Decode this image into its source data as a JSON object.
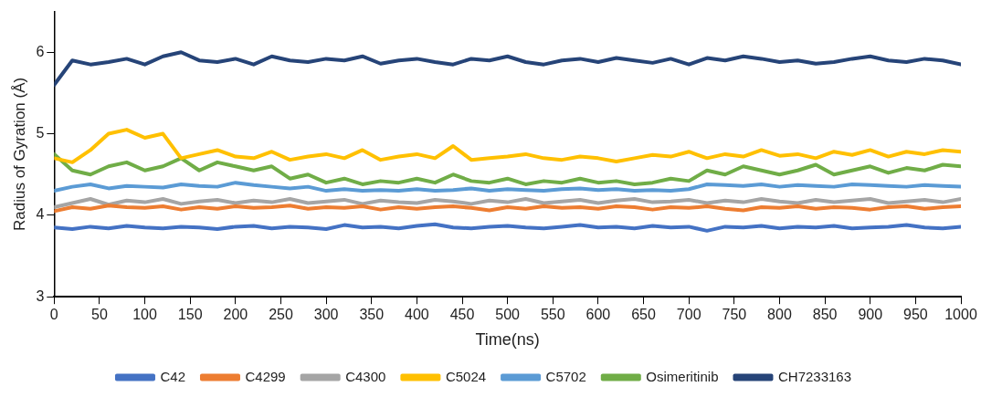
{
  "chart_data": {
    "type": "line",
    "xlabel": "Time(ns)",
    "ylabel": "Radius of Gyration (Å)",
    "x": [
      0,
      20,
      40,
      60,
      80,
      100,
      120,
      140,
      160,
      180,
      200,
      220,
      240,
      260,
      280,
      300,
      320,
      340,
      360,
      380,
      400,
      420,
      440,
      460,
      480,
      500,
      520,
      540,
      560,
      580,
      600,
      620,
      640,
      660,
      680,
      700,
      720,
      740,
      760,
      780,
      800,
      820,
      840,
      860,
      880,
      900,
      920,
      940,
      960,
      980,
      1000
    ],
    "series": [
      {
        "name": "C42",
        "color": "#4472c4",
        "values": [
          3.85,
          3.83,
          3.86,
          3.84,
          3.87,
          3.85,
          3.84,
          3.86,
          3.85,
          3.83,
          3.86,
          3.87,
          3.84,
          3.86,
          3.85,
          3.83,
          3.88,
          3.85,
          3.86,
          3.84,
          3.87,
          3.89,
          3.85,
          3.84,
          3.86,
          3.87,
          3.85,
          3.84,
          3.86,
          3.88,
          3.85,
          3.86,
          3.84,
          3.87,
          3.85,
          3.86,
          3.81,
          3.86,
          3.85,
          3.87,
          3.84,
          3.86,
          3.85,
          3.87,
          3.84,
          3.85,
          3.86,
          3.88,
          3.85,
          3.84,
          3.86
        ]
      },
      {
        "name": "C4299",
        "color": "#ed7d31",
        "values": [
          4.05,
          4.1,
          4.08,
          4.12,
          4.1,
          4.09,
          4.11,
          4.07,
          4.1,
          4.08,
          4.11,
          4.09,
          4.1,
          4.12,
          4.08,
          4.1,
          4.09,
          4.11,
          4.07,
          4.1,
          4.08,
          4.1,
          4.11,
          4.09,
          4.06,
          4.1,
          4.08,
          4.11,
          4.09,
          4.1,
          4.08,
          4.11,
          4.1,
          4.07,
          4.1,
          4.09,
          4.11,
          4.08,
          4.06,
          4.1,
          4.09,
          4.11,
          4.08,
          4.1,
          4.09,
          4.07,
          4.1,
          4.11,
          4.08,
          4.1,
          4.11
        ]
      },
      {
        "name": "C4300",
        "color": "#a5a5a5",
        "values": [
          4.1,
          4.15,
          4.2,
          4.13,
          4.18,
          4.16,
          4.2,
          4.14,
          4.17,
          4.19,
          4.15,
          4.18,
          4.16,
          4.2,
          4.15,
          4.17,
          4.19,
          4.14,
          4.18,
          4.16,
          4.15,
          4.19,
          4.17,
          4.14,
          4.18,
          4.16,
          4.2,
          4.15,
          4.17,
          4.19,
          4.15,
          4.18,
          4.2,
          4.16,
          4.17,
          4.19,
          4.15,
          4.18,
          4.16,
          4.2,
          4.17,
          4.15,
          4.19,
          4.16,
          4.18,
          4.2,
          4.15,
          4.17,
          4.19,
          4.16,
          4.2
        ]
      },
      {
        "name": "C5024",
        "color": "#ffc000",
        "values": [
          4.7,
          4.65,
          4.8,
          5.0,
          5.05,
          4.95,
          5.0,
          4.7,
          4.75,
          4.8,
          4.72,
          4.7,
          4.78,
          4.68,
          4.72,
          4.75,
          4.7,
          4.8,
          4.68,
          4.72,
          4.75,
          4.7,
          4.85,
          4.68,
          4.7,
          4.72,
          4.75,
          4.7,
          4.68,
          4.72,
          4.7,
          4.66,
          4.7,
          4.74,
          4.72,
          4.78,
          4.7,
          4.75,
          4.72,
          4.8,
          4.73,
          4.75,
          4.7,
          4.78,
          4.74,
          4.8,
          4.72,
          4.78,
          4.75,
          4.8,
          4.78
        ]
      },
      {
        "name": "C5702",
        "color": "#5b9bd5",
        "values": [
          4.3,
          4.35,
          4.38,
          4.33,
          4.36,
          4.35,
          4.34,
          4.38,
          4.36,
          4.35,
          4.4,
          4.37,
          4.35,
          4.33,
          4.35,
          4.3,
          4.32,
          4.3,
          4.31,
          4.3,
          4.32,
          4.3,
          4.31,
          4.33,
          4.3,
          4.32,
          4.31,
          4.3,
          4.32,
          4.33,
          4.31,
          4.32,
          4.3,
          4.31,
          4.3,
          4.32,
          4.38,
          4.37,
          4.36,
          4.38,
          4.35,
          4.37,
          4.36,
          4.35,
          4.38,
          4.37,
          4.36,
          4.35,
          4.37,
          4.36,
          4.35
        ]
      },
      {
        "name": "Osimeritinib",
        "color": "#70ad47",
        "values": [
          4.75,
          4.55,
          4.5,
          4.6,
          4.65,
          4.55,
          4.6,
          4.7,
          4.55,
          4.65,
          4.6,
          4.55,
          4.6,
          4.45,
          4.5,
          4.4,
          4.45,
          4.38,
          4.42,
          4.4,
          4.45,
          4.4,
          4.5,
          4.42,
          4.4,
          4.45,
          4.38,
          4.42,
          4.4,
          4.45,
          4.4,
          4.42,
          4.38,
          4.4,
          4.45,
          4.42,
          4.55,
          4.5,
          4.6,
          4.55,
          4.5,
          4.55,
          4.62,
          4.5,
          4.55,
          4.6,
          4.52,
          4.58,
          4.55,
          4.62,
          4.6
        ]
      },
      {
        "name": "CH7233163",
        "color": "#264478",
        "values": [
          5.6,
          5.9,
          5.85,
          5.88,
          5.92,
          5.85,
          5.95,
          6.0,
          5.9,
          5.88,
          5.92,
          5.85,
          5.95,
          5.9,
          5.88,
          5.92,
          5.9,
          5.95,
          5.86,
          5.9,
          5.92,
          5.88,
          5.85,
          5.92,
          5.9,
          5.95,
          5.88,
          5.85,
          5.9,
          5.92,
          5.88,
          5.93,
          5.9,
          5.87,
          5.92,
          5.85,
          5.93,
          5.9,
          5.95,
          5.92,
          5.88,
          5.9,
          5.86,
          5.88,
          5.92,
          5.95,
          5.9,
          5.88,
          5.92,
          5.9,
          5.85
        ]
      }
    ],
    "xlim": [
      0,
      1000
    ],
    "xticks": [
      0,
      50,
      100,
      150,
      200,
      250,
      300,
      350,
      400,
      450,
      500,
      550,
      600,
      650,
      700,
      750,
      800,
      850,
      900,
      950,
      1000
    ],
    "ylim": [
      3,
      6.5
    ],
    "yticks": [
      3,
      4,
      5,
      6
    ],
    "grid": false,
    "legend": "bottom",
    "marker": "none",
    "line_style": "solid"
  }
}
